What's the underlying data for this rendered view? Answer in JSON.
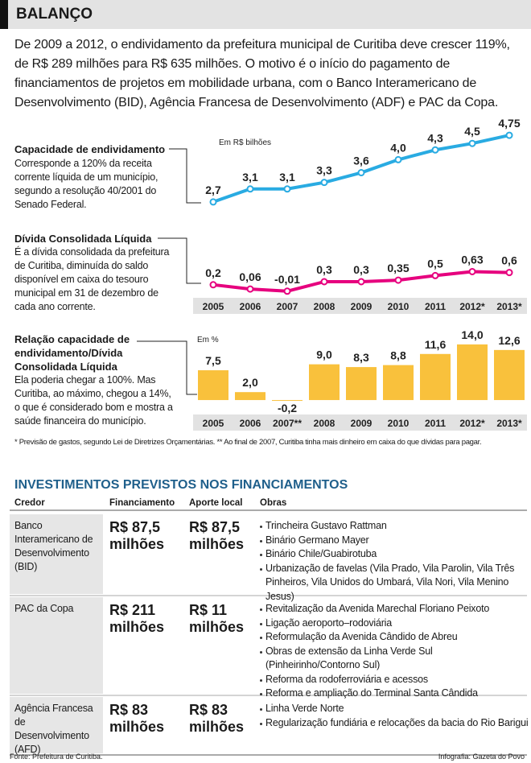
{
  "header": {
    "title": "BALANÇO",
    "intro": "De 2009 a 2012, o endividamento da prefeitura municipal de Curitiba deve crescer 119%, de R$ 289 milhões para R$ 635 milhões. O motivo é o início do pagamento de financiamentos de projetos em mobilidade urbana, com o Banco Interamericano de Desenvolvimento (BID), Agência Francesa de Desenvolvimento (ADF) e PAC da Copa."
  },
  "chart_data": [
    {
      "type": "line",
      "title": "Capacidade de endividamento",
      "description": "Corresponde a 120% da receita corrente líquida de um município, segundo a resolução 40/2001 do Senado Federal.",
      "unit_label": "Em R$ bilhões",
      "values": [
        2.7,
        3.1,
        3.1,
        3.3,
        3.6,
        4.0,
        4.3,
        4.5,
        4.75
      ],
      "value_labels": [
        "2,7",
        "3,1",
        "3,1",
        "3,3",
        "3,6",
        "4,0",
        "4,3",
        "4,5",
        "4,75"
      ],
      "color": "#29abe2",
      "ylim": [
        2.5,
        5
      ]
    },
    {
      "type": "line",
      "title": "Dívida Consolidada Líquida",
      "description": "É a dívida consolidada da prefeitura de Curitiba, diminuída do saldo disponível em caixa do tesouro municipal em 31 de dezembro de cada ano corrente.",
      "categories": [
        "2005",
        "2006",
        "2007",
        "2008",
        "2009",
        "2010",
        "2011",
        "2012*",
        "2013*"
      ],
      "values": [
        0.2,
        0.06,
        -0.01,
        0.3,
        0.3,
        0.35,
        0.5,
        0.63,
        0.6
      ],
      "value_labels": [
        "0,2",
        "0,06",
        "-0,01",
        "0,3",
        "0,3",
        "0,35",
        "0,5",
        "0,63",
        "0,6"
      ],
      "color": "#e6007e",
      "ylim": [
        -0.2,
        0.8
      ]
    },
    {
      "type": "bar",
      "title": "Relação capacidade de endividamento/Dívida Consolidada Líquida",
      "description": "Ela poderia chegar a 100%. Mas Curitiba, ao máximo, chegou a 14%, o que é considerado bom e mostra a saúde financeira do município.",
      "unit_label": "Em %",
      "categories": [
        "2005",
        "2006",
        "2007**",
        "2008",
        "2009",
        "2010",
        "2011",
        "2012*",
        "2013*"
      ],
      "values": [
        7.5,
        2.0,
        -0.2,
        9.0,
        8.3,
        8.8,
        11.6,
        14.0,
        12.6
      ],
      "value_labels": [
        "7,5",
        "2,0",
        "-0,2",
        "9,0",
        "8,3",
        "8,8",
        "11,6",
        "14,0",
        "12,6"
      ],
      "color": "#f9c13c",
      "ylim": [
        -1,
        15
      ]
    }
  ],
  "footnote": "* Previsão de gastos, segundo Lei de Diretrizes Orçamentárias. ** Ao final de 2007, Curitiba tinha mais dinheiro em caixa do que dívidas para pagar.",
  "table": {
    "title": "INVESTIMENTOS PREVISTOS NOS FINANCIAMENTOS",
    "columns": [
      "Credor",
      "Financiamento",
      "Aporte local",
      "Obras"
    ],
    "rows": [
      [
        "Banco Interamericano de Desenvolvimento (BID)",
        "R$ 87,5 milhões",
        "R$ 87,5 milhões",
        [
          "Trincheira Gustavo Rattman",
          "Binário Germano Mayer",
          "Binário Chile/Guabirotuba",
          "Urbanização de favelas (Vila Prado, Vila Parolin, Vila Três Pinheiros, Vila Unidos do Umbará, Vila Nori, Vila Menino Jesus)"
        ]
      ],
      [
        "PAC da Copa",
        "R$ 211 milhões",
        "R$ 11 milhões",
        [
          "Revitalização da Avenida Marechal Floriano Peixoto",
          "Ligação aeroporto–rodoviária",
          "Reformulação da Avenida Cândido de Abreu",
          "Obras de extensão da Linha Verde Sul (Pinheirinho/Contorno Sul)",
          "Reforma da rodoferroviária e acessos",
          "Reforma e ampliação do Terminal Santa Cândida"
        ]
      ],
      [
        "Agência Francesa de Desenvolvimento (AFD)",
        "R$ 83 milhões",
        "R$ 83 milhões",
        [
          "Linha Verde Norte",
          "Regularização fundiária e relocações da bacia do Rio Barigui"
        ]
      ]
    ]
  },
  "source": "Fonte: Prefeitura de Curitiba.",
  "credit": "Infografia: Gazeta do Povo"
}
